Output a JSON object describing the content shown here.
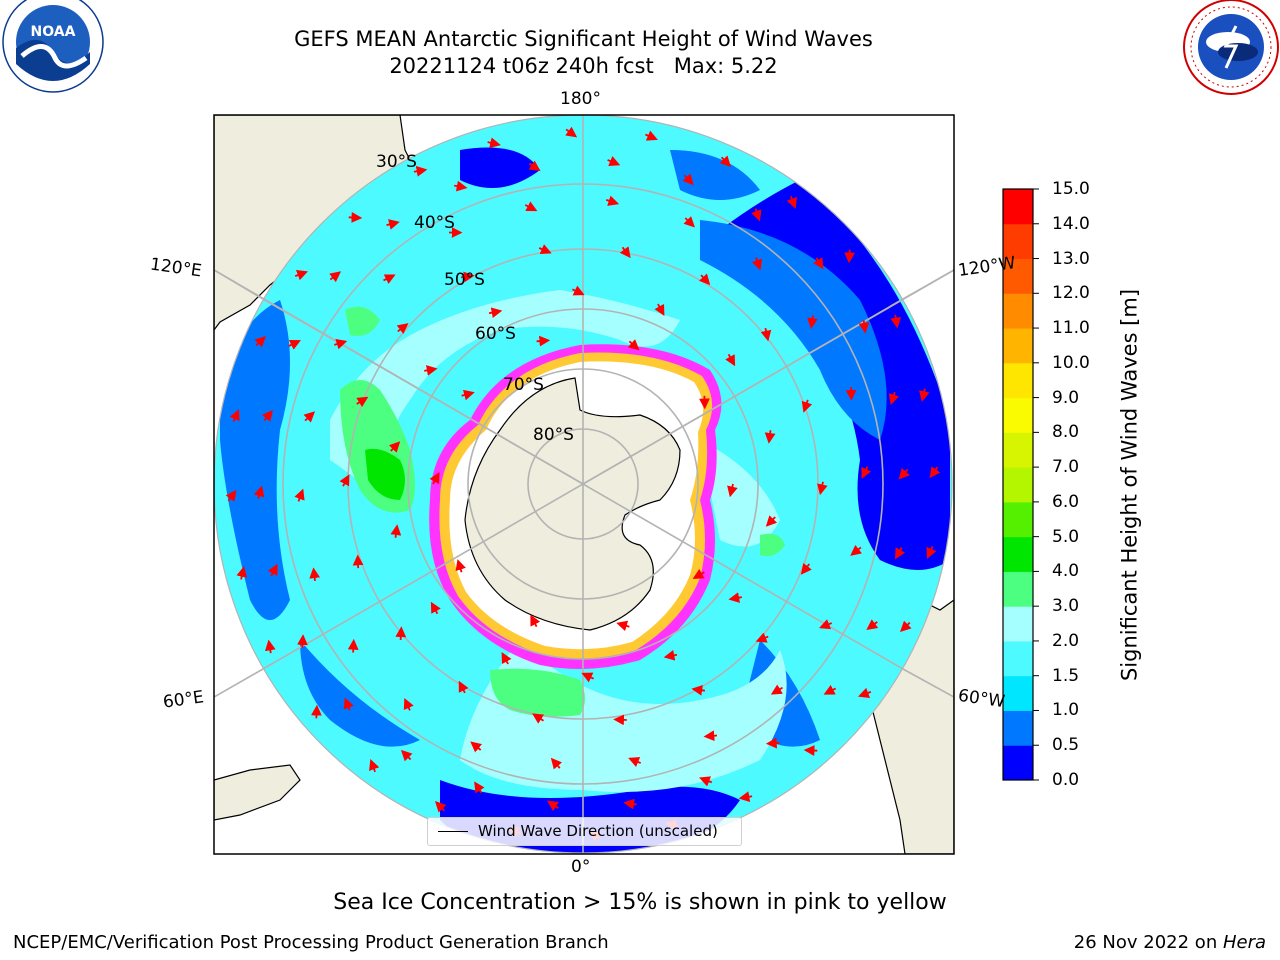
{
  "title": {
    "line1": "GEFS MEAN Antarctic Significant Height of Wind Waves",
    "line2": "20221124 t06z 240h fcst   Max: 5.22"
  },
  "logos": {
    "left": {
      "icon": "noaa-logo",
      "text": "NOAA",
      "ring_text": "NATIONAL OCEANIC AND ATMOSPHERIC ADMINISTRATION · U.S. DEPARTMENT OF COMMERCE"
    },
    "right": {
      "icon": "nws-logo",
      "ring_text": "NATIONAL WEATHER SERVICE"
    }
  },
  "map": {
    "projection": "south-polar-stereographic",
    "longitude_labels": {
      "top": "180°",
      "bottom": "0°",
      "upper_left": "120°E",
      "upper_right": "120°W",
      "lower_left": "60°E",
      "lower_right": "60°W"
    },
    "latitude_labels": [
      "30°S",
      "40°S",
      "50°S",
      "60°S",
      "70°S",
      "80°S"
    ],
    "colors": {
      "land": "#efedde",
      "ice_edge_pink": "#ff33ff",
      "ice_edge_yellow": "#ffc933",
      "arrow": "#ff0000",
      "grid": "#b3b3b3"
    },
    "legend": {
      "label": "Wind Wave Direction (unscaled)"
    }
  },
  "colorbar": {
    "title": "Significant Height of Wind Waves [m]",
    "ticks": [
      "0.0",
      "0.5",
      "1.0",
      "1.5",
      "2.0",
      "3.0",
      "4.0",
      "5.0",
      "6.0",
      "7.0",
      "8.0",
      "9.0",
      "10.0",
      "11.0",
      "12.0",
      "13.0",
      "14.0",
      "15.0"
    ],
    "colors": [
      "#0000ff",
      "#0078ff",
      "#00e6ff",
      "#4dfaff",
      "#a6ffff",
      "#4dff80",
      "#00e600",
      "#55f000",
      "#b4f500",
      "#d7f500",
      "#fafa00",
      "#ffe600",
      "#ffb400",
      "#ff8c00",
      "#ff5a00",
      "#ff3c00",
      "#ff0000"
    ]
  },
  "note": "Sea Ice Concentration > 15% is shown in pink to yellow",
  "footer": {
    "left": "NCEP/EMC/Verification Post Processing Product Generation Branch",
    "date": "26 Nov 2022 on ",
    "host": "Hera"
  }
}
